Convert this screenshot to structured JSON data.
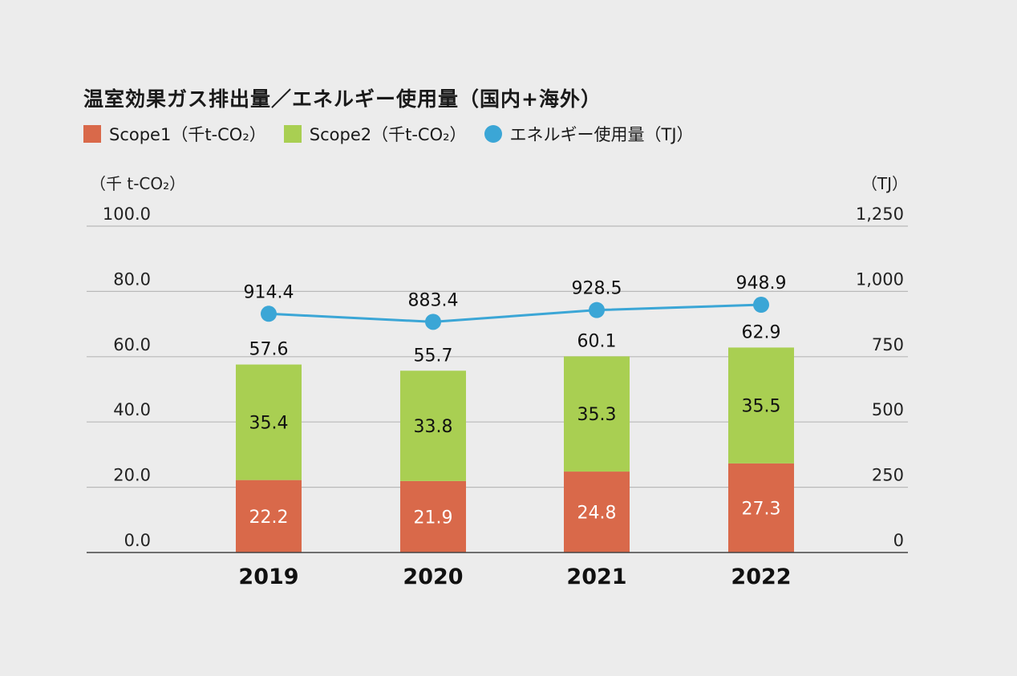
{
  "title": "温室効果ガス排出量／エネルギー使用量（国内+海外）",
  "legend": [
    {
      "label": "Scope1（千t-CO₂）",
      "color": "#d9694a",
      "shape": "square"
    },
    {
      "label": "Scope2（千t-CO₂）",
      "color": "#a9cf52",
      "shape": "square"
    },
    {
      "label": "エネルギー使用量（TJ）",
      "color": "#3ba6d6",
      "shape": "circle"
    }
  ],
  "chart_data": {
    "type": "bar",
    "stacked": true,
    "categories": [
      "2019",
      "2020",
      "2021",
      "2022"
    ],
    "series": [
      {
        "name": "Scope1（千t-CO₂）",
        "values": [
          22.2,
          21.9,
          24.8,
          27.3
        ],
        "color": "#d9694a",
        "axis": "left"
      },
      {
        "name": "Scope2（千t-CO₂）",
        "values": [
          35.4,
          33.8,
          35.3,
          35.5
        ],
        "color": "#a9cf52",
        "axis": "left"
      },
      {
        "name": "エネルギー使用量（TJ）",
        "type": "line",
        "values": [
          914.4,
          883.4,
          928.5,
          948.9
        ],
        "color": "#3ba6d6",
        "axis": "right"
      }
    ],
    "totals": [
      57.6,
      55.7,
      60.1,
      62.9
    ],
    "left_axis": {
      "unit": "（千 t-CO₂）",
      "ylim": [
        0,
        100
      ],
      "ticks": [
        "0.0",
        "20.0",
        "40.0",
        "60.0",
        "80.0",
        "100.0"
      ]
    },
    "right_axis": {
      "unit": "（TJ）",
      "ylim": [
        0,
        1250
      ],
      "ticks": [
        "0",
        "250",
        "500",
        "750",
        "1,000",
        "1,250"
      ]
    },
    "grid": true,
    "legend_position": "top-left"
  }
}
